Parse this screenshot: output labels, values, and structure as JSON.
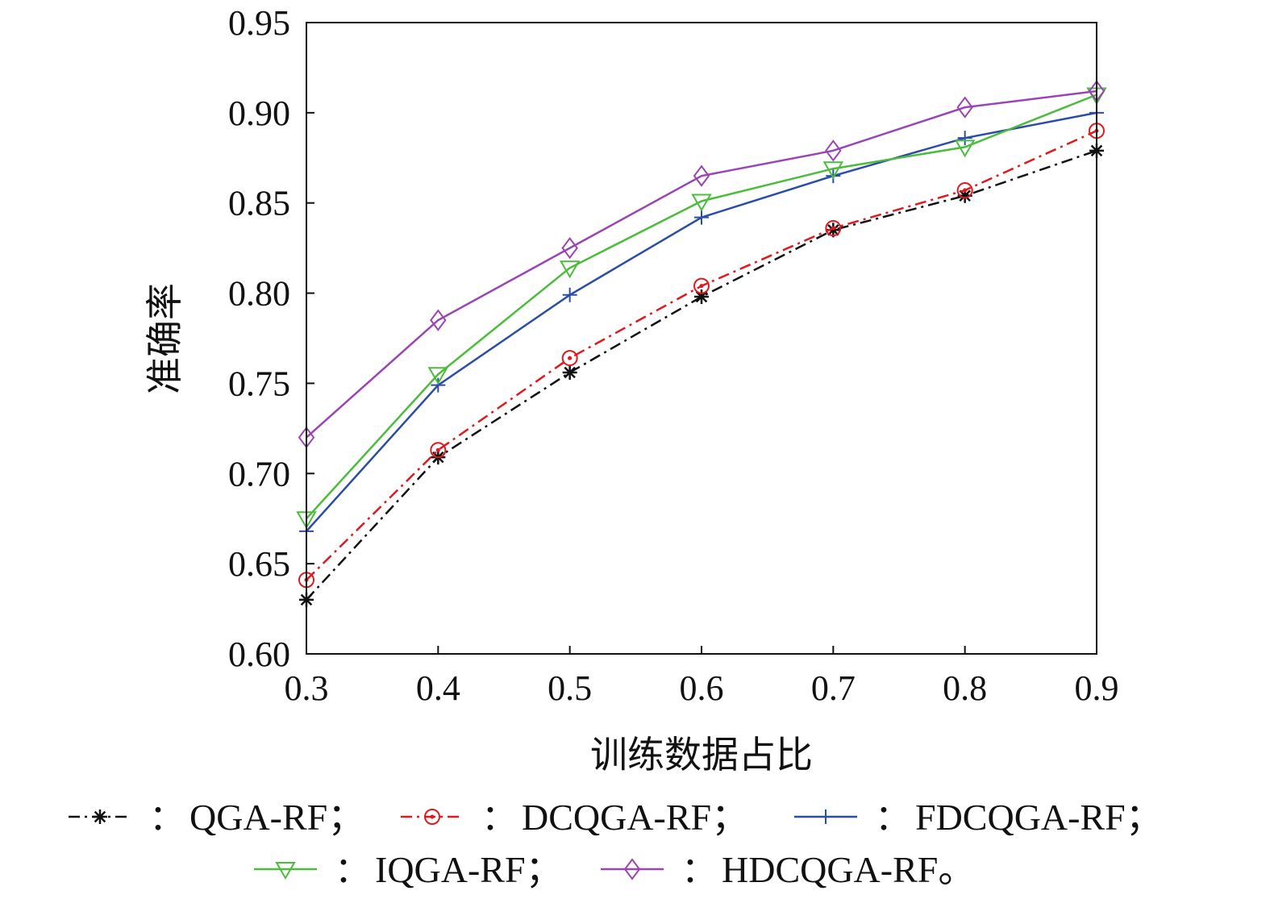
{
  "chart_data": {
    "type": "line",
    "title": "",
    "xlabel": "训练数据占比",
    "ylabel": "准确率",
    "xlim": [
      0.3,
      0.9
    ],
    "ylim": [
      0.6,
      0.95
    ],
    "xticks": [
      "0.3",
      "0.4",
      "0.5",
      "0.6",
      "0.7",
      "0.8",
      "0.9"
    ],
    "yticks": [
      "0.60",
      "0.65",
      "0.70",
      "0.75",
      "0.80",
      "0.85",
      "0.90",
      "0.95"
    ],
    "grid": false,
    "legend_placement": "bottom",
    "legend_separator": "：",
    "x": [
      0.3,
      0.4,
      0.5,
      0.6,
      0.7,
      0.8,
      0.9
    ],
    "series": [
      {
        "name": "QGA-RF；",
        "color": "#111111",
        "marker": "asterisk",
        "dash": "dash-dot",
        "values": [
          0.63,
          0.709,
          0.756,
          0.798,
          0.835,
          0.854,
          0.879
        ]
      },
      {
        "name": "DCQGA-RF；",
        "color": "#e0191e",
        "marker": "circle-dot",
        "dash": "dash-dot",
        "values": [
          0.641,
          0.713,
          0.764,
          0.804,
          0.836,
          0.857,
          0.89
        ]
      },
      {
        "name": "FDCQGA-RF；",
        "color": "#2a4ea8",
        "marker": "plus",
        "dash": "solid",
        "values": [
          0.668,
          0.749,
          0.799,
          0.842,
          0.865,
          0.886,
          0.9
        ]
      },
      {
        "name": "IQGA-RF；",
        "color": "#4cbc3c",
        "marker": "triangle-down",
        "dash": "solid",
        "values": [
          0.675,
          0.755,
          0.814,
          0.851,
          0.869,
          0.881,
          0.91
        ]
      },
      {
        "name": "HDCQGA-RF。",
        "color": "#9b45b5",
        "marker": "diamond",
        "dash": "solid",
        "values": [
          0.72,
          0.785,
          0.825,
          0.865,
          0.879,
          0.903,
          0.912
        ]
      }
    ]
  }
}
